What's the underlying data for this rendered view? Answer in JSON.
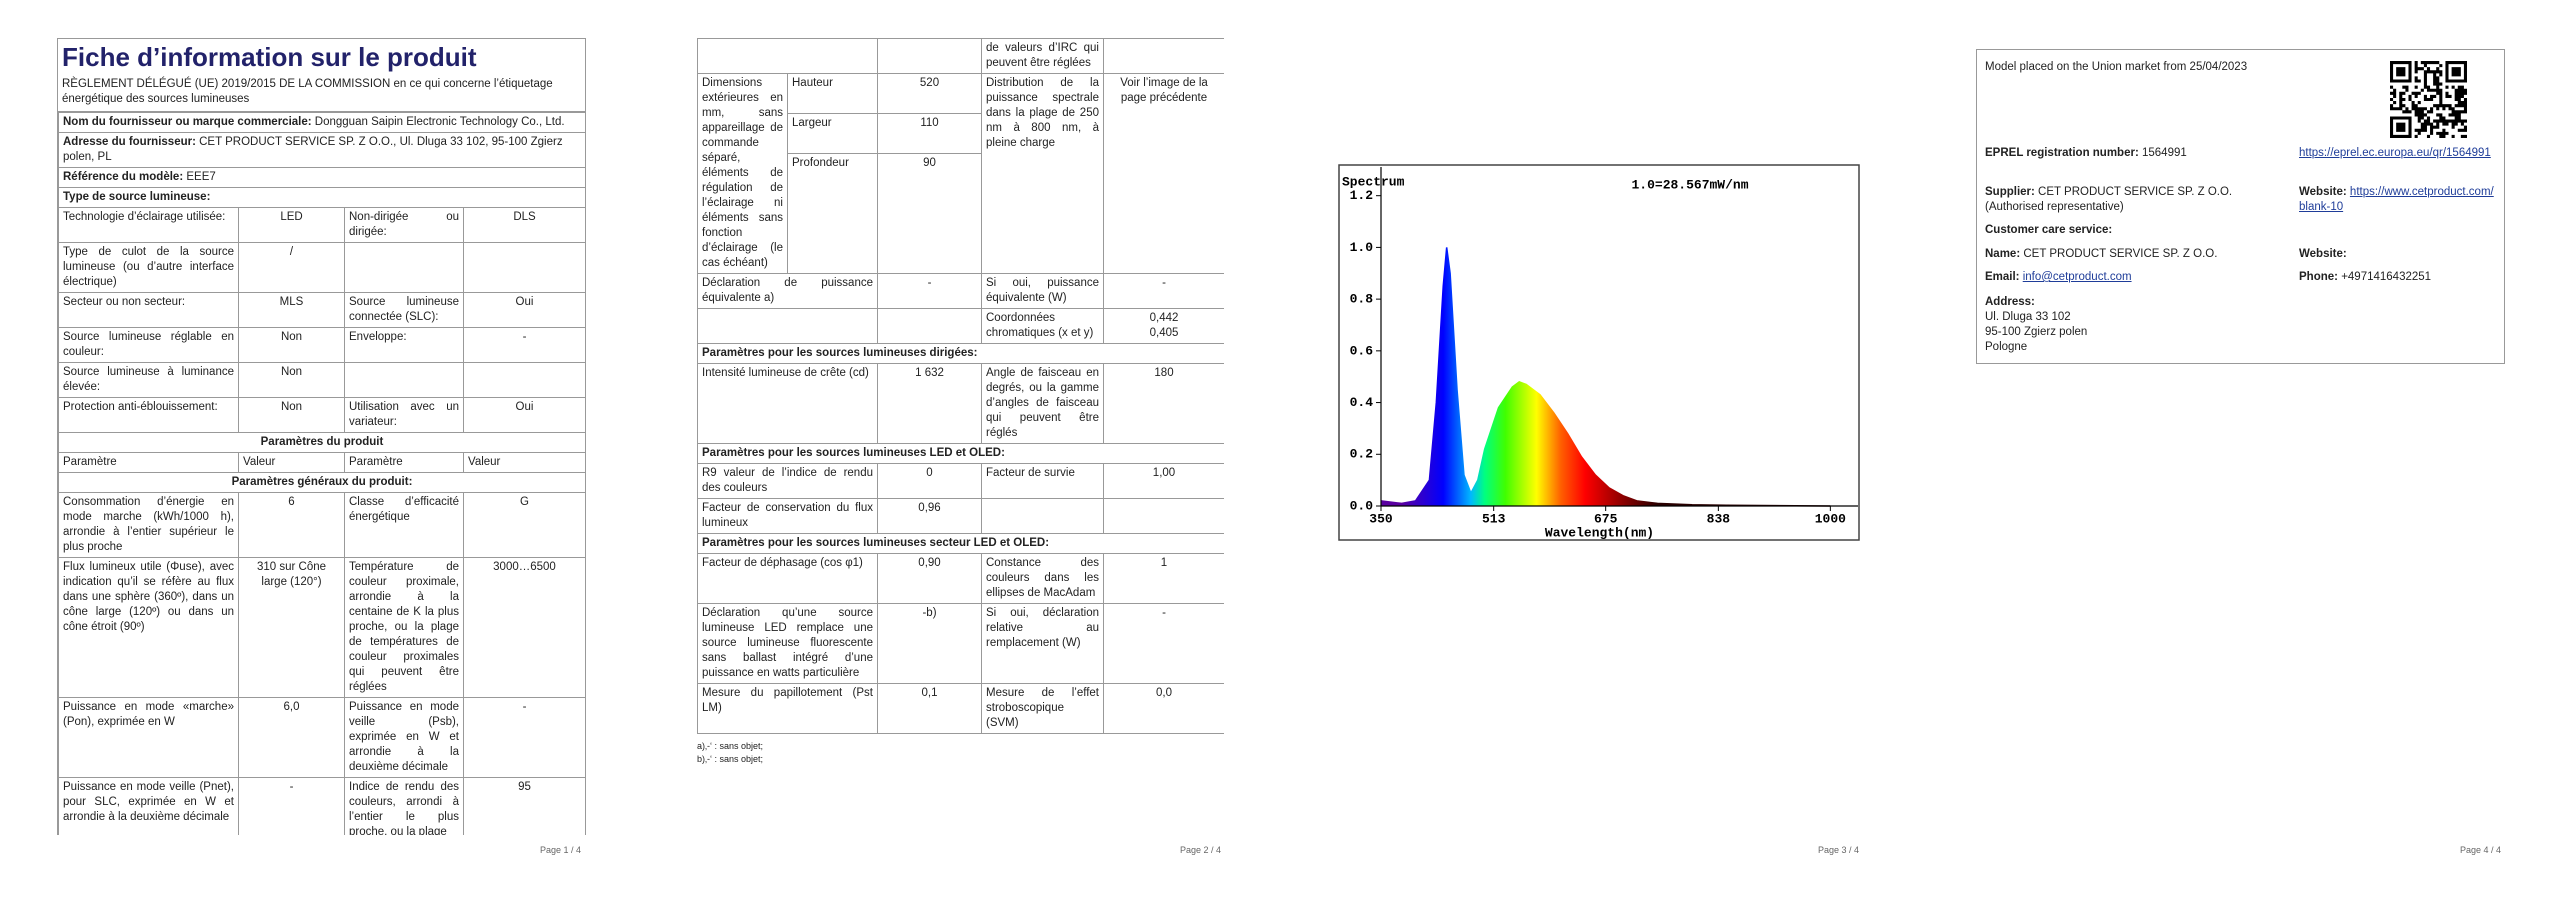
{
  "page1": {
    "title": "Fiche d’information sur le produit",
    "subtitle": "RÈGLEMENT DÉLÉGUÉ (UE) 2019/2015 DE LA COMMISSION en ce qui concerne l’étiquetage énergétique des sources lumineuses",
    "rows": [
      {
        "label": "Nom du fournisseur ou marque commerciale:",
        "value": "Dongguan Saipin Electronic Technology Co., Ltd."
      },
      {
        "label": "Adresse du fournisseur:",
        "value": "CET PRODUCT SERVICE SP. Z O.O., Ul. Dluga 33 102, 95-100 Zgierz polen, PL"
      },
      {
        "label": "Référence du modèle:",
        "value": "EEE7"
      },
      {
        "label": "Type de source lumineuse:"
      },
      {
        "cells": [
          "Technologie d’éclairage utilisée:",
          "LED",
          "Non-dirigée ou dirigée:",
          "DLS"
        ]
      },
      {
        "cells": [
          "Type de culot de la source lumineuse (ou d’autre interface électrique)",
          "/",
          null,
          null
        ]
      },
      {
        "cells": [
          "Secteur ou non secteur:",
          "MLS",
          "Source lumineuse connectée (SLC):",
          "Oui"
        ]
      },
      {
        "cells": [
          "Source lumineuse réglable en couleur:",
          "Non",
          "Enveloppe:",
          "-"
        ]
      },
      {
        "cells": [
          "Source lumineuse à luminance élevée:",
          "Non",
          null,
          null
        ]
      },
      {
        "cells": [
          "Protection anti-éblouissement:",
          "Non",
          "Utilisation avec un variateur:",
          "Oui"
        ]
      },
      {
        "section": "Paramètres du produit"
      },
      {
        "header": [
          "Paramètre",
          "Valeur",
          "Paramètre",
          "Valeur"
        ]
      },
      {
        "section": "Paramètres généraux du produit:"
      },
      {
        "cells": [
          "Consommation d’énergie en mode marche (kWh/1000 h), arrondie à l’entier supérieur le plus proche",
          "6",
          "Classe d’efficacité énergétique",
          "G"
        ]
      },
      {
        "cells": [
          "Flux lumineux utile (Φuse), avec indication qu’il se réfère au flux dans une sphère (360º), dans un cône large (120º) ou dans un cône étroit (90º)",
          "310 sur Cône large (120°)",
          "Température de couleur proximale, arrondie à la centaine de K la plus proche, ou la plage de températures de couleur proximales qui peuvent être réglées",
          "3000…6500"
        ]
      },
      {
        "cells": [
          "Puissance en mode «marche» (Pon), exprimée en W",
          "6,0",
          "Puissance en mode veille (Psb), exprimée en W et arrondie à la deuxième décimale",
          "-"
        ]
      },
      {
        "cells": [
          "Puissance en mode veille (Pnet), pour SLC, exprimée en W et arrondie à la deuxième décimale",
          "-",
          "Indice de rendu des couleurs, arrondi à l’entier le plus proche, ou la plage",
          "95"
        ]
      }
    ],
    "page_number": "Page 1 / 4"
  },
  "page2": {
    "rows": [
      {
        "cells": [
          null,
          null,
          "de valeurs d’IRC qui peuvent être réglées",
          null
        ]
      },
      {
        "dims": {
          "label": "Dimensions extérieures en mm, sans appareillage de commande séparé, éléments de régulation de l’éclairage ni éléments sans fonction d’éclairage (le cas échéant)",
          "items": [
            {
              "name": "Hauteur",
              "value": "520"
            },
            {
              "name": "Largeur",
              "value": "110"
            },
            {
              "name": "Profondeur",
              "value": "90"
            }
          ],
          "param": "Distribution de la puissance spectrale dans la plage de 250 nm à 800 nm, à pleine charge",
          "param_value": "Voir l’image de la page précédente"
        }
      },
      {
        "cells": [
          "Déclaration de puissance équivalente a)",
          "-",
          "Si oui, puissance équivalente (W)",
          "-"
        ]
      },
      {
        "cells": [
          null,
          null,
          "Coordonnées chromatiques (x et y)",
          "0,442\n0,405"
        ]
      },
      {
        "section": "Paramètres pour les sources lumineuses dirigées:"
      },
      {
        "cells": [
          "Intensité lumineuse de crête (cd)",
          "1 632",
          "Angle de faisceau en degrés, ou la gamme d’angles de faisceau qui peuvent être réglés",
          "180"
        ]
      },
      {
        "section": "Paramètres pour les sources lumineuses LED et OLED:"
      },
      {
        "cells": [
          "R9 valeur de l’indice de rendu des couleurs",
          "0",
          "Facteur de survie",
          "1,00"
        ]
      },
      {
        "cells": [
          "Facteur de conservation du flux lumineux",
          "0,96",
          null,
          null
        ]
      },
      {
        "section": "Paramètres pour les sources lumineuses secteur LED et OLED:"
      },
      {
        "cells": [
          "Facteur de déphasage (cos φ1)",
          "0,90",
          "Constance des couleurs dans les ellipses de MacAdam",
          "1"
        ]
      },
      {
        "cells": [
          "Déclaration qu’une source lumineuse LED remplace une source lumineuse fluorescente sans ballast intégré d’une puissance en watts particulière",
          "-b)",
          "Si oui, déclaration relative au remplacement (W)",
          "-"
        ]
      },
      {
        "cells": [
          "Mesure du papillotement (Pst LM)",
          "0,1",
          "Mesure de l’effet stroboscopique (SVM)",
          "0,0"
        ]
      }
    ],
    "footnotes": [
      "a)‚-‘ : sans objet;",
      "b)‚-‘ : sans objet;"
    ],
    "page_number": "Page 2 / 4"
  },
  "chart_data": {
    "type": "area",
    "title": "Spectrum",
    "annotation": "1.0=28.567mW/nm",
    "x_label": "Wavelength(nm)",
    "x": [
      350,
      380,
      400,
      420,
      430,
      440,
      445,
      450,
      460,
      470,
      480,
      490,
      500,
      520,
      540,
      550,
      560,
      580,
      600,
      620,
      640,
      660,
      680,
      700,
      720,
      750,
      800,
      850,
      900,
      1000
    ],
    "values": [
      0.02,
      0.01,
      0.02,
      0.1,
      0.4,
      0.85,
      1.0,
      0.9,
      0.45,
      0.12,
      0.05,
      0.1,
      0.22,
      0.38,
      0.46,
      0.48,
      0.47,
      0.43,
      0.36,
      0.28,
      0.19,
      0.12,
      0.07,
      0.04,
      0.02,
      0.01,
      0.005,
      0.003,
      0.002,
      0
    ],
    "xlim": [
      350,
      1040
    ],
    "ylim": [
      0,
      1.28
    ],
    "xticks": [
      350,
      513,
      675,
      838,
      1000
    ],
    "yticks": [
      {
        "value": 0,
        "label": "0.0"
      },
      0.2,
      0.4,
      0.6,
      0.8,
      {
        "value": 1,
        "label": "1.0"
      },
      1.2
    ]
  },
  "page3": {
    "page_number": "Page 3 / 4"
  },
  "page4": {
    "market": "Model placed on the Union market from 25/04/2023",
    "eprel_label": "EPREL registration number:",
    "eprel_value": "1564991",
    "eprel_link": "https://eprel.ec.europa.eu/qr/1564991",
    "supplier_label": "Supplier:",
    "supplier_value": "CET PRODUCT SERVICE SP. Z O.O. (Authorised representative)",
    "website_label": "Website:",
    "website_value": "https://www.cetproduct.com/blank-10",
    "care": "Customer care service:",
    "name_label": "Name:",
    "name_value": "CET PRODUCT SERVICE SP. Z O.O.",
    "care_website_label": "Website:",
    "email_label": "Email:",
    "email_value": "info@cetproduct.com",
    "phone_label": "Phone:",
    "phone_value": "+4971416432251",
    "address_label": "Address:",
    "address_lines": [
      "Ul. Dluga 33 102",
      "95-100 Zgierz polen",
      "Pologne"
    ],
    "page_number": "Page 4 / 4"
  }
}
